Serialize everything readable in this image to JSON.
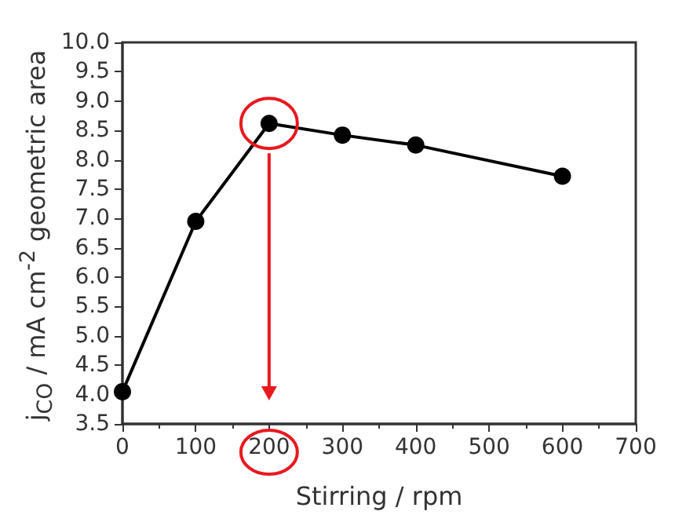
{
  "chart_data": {
    "type": "line",
    "xlabel": "Stirring / rpm",
    "ylabel": "j$_{CO}$ / mA cm$^{-2}$ geometric area",
    "x": [
      0,
      100,
      200,
      300,
      400,
      600
    ],
    "series": [
      {
        "color": "#000000",
        "values": [
          4.05,
          6.95,
          8.62,
          8.42,
          8.25,
          7.72
        ]
      }
    ],
    "xlim": [
      0,
      700
    ],
    "xticks": [
      0,
      100,
      200,
      300,
      400,
      500,
      600,
      700
    ],
    "ylim": [
      3.5,
      10
    ],
    "yticks": [
      {
        "value": 3.5,
        "label": "3.5"
      },
      {
        "value": 4,
        "label": "4.0"
      },
      {
        "value": 4.5,
        "label": "4.5"
      },
      {
        "value": 5,
        "label": "5.0"
      },
      {
        "value": 5.5,
        "label": "5.5"
      },
      {
        "value": 6,
        "label": "6.0"
      },
      {
        "value": 6.5,
        "label": "6.5"
      },
      {
        "value": 7,
        "label": "7.0"
      },
      {
        "value": 7.5,
        "label": "7.5"
      },
      {
        "value": 8,
        "label": "8.0"
      },
      {
        "value": 8.5,
        "label": "8.5"
      },
      {
        "value": 9,
        "label": "9.0"
      },
      {
        "value": 9.5,
        "label": "9.5"
      },
      {
        "value": 10,
        "label": "10.0"
      }
    ],
    "marker": "circle",
    "line_style": "solid"
  }
}
